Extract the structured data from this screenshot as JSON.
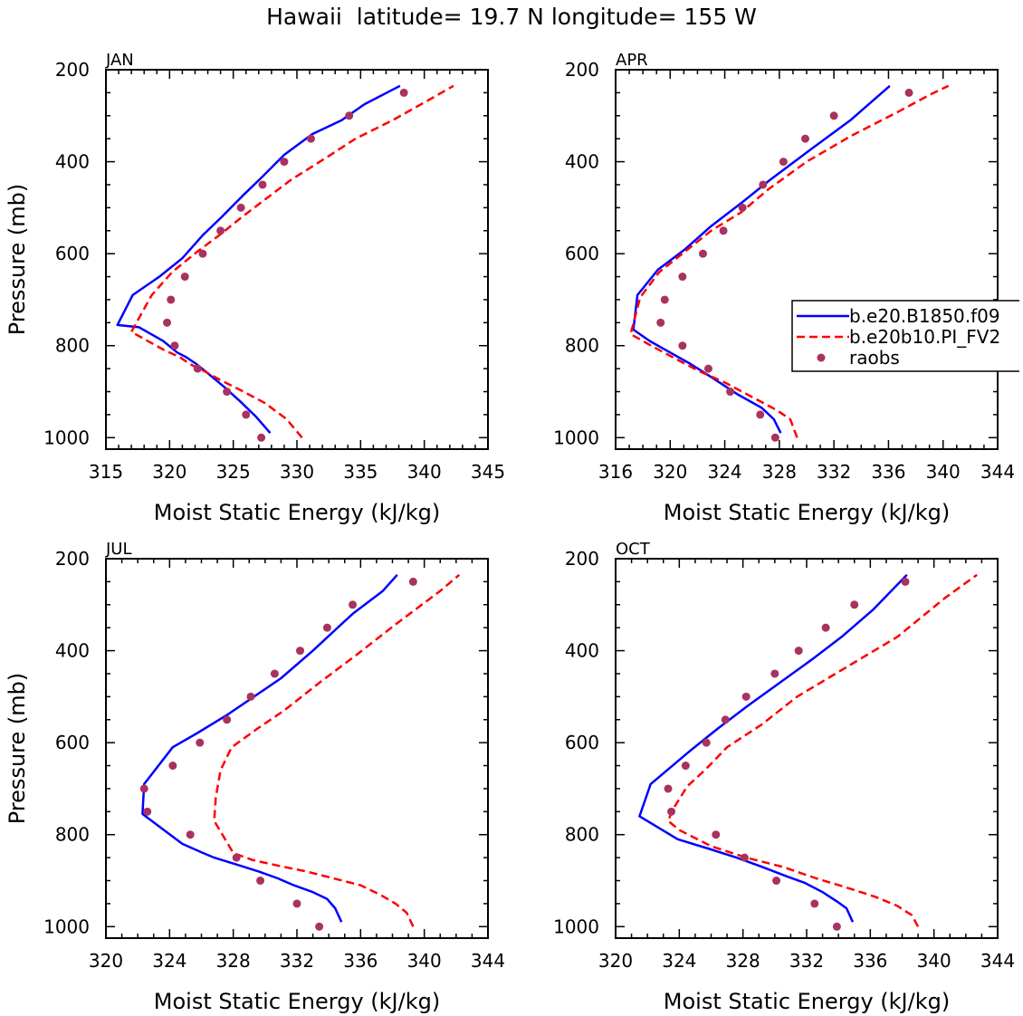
{
  "figure_title": "Hawaii  latitude= 19.7 N longitude= 155 W",
  "chart_data": [
    {
      "type": "line",
      "panel": "JAN",
      "xlabel": "Moist Static Energy (kJ/kg)",
      "ylabel": "Pressure (mb)",
      "xlim": [
        315,
        345
      ],
      "ylim": [
        200,
        1025
      ],
      "y_inverted": true,
      "xticks": [
        315,
        320,
        325,
        330,
        335,
        340,
        345
      ],
      "xminor": 1,
      "yticks": [
        200,
        400,
        600,
        800,
        1000
      ],
      "yminor": 50,
      "legend": null,
      "series": [
        {
          "name": "b.e20.B1850.f09",
          "color": "#0000ff",
          "style": "solid",
          "x": [
            327.9,
            326.8,
            325.5,
            324.3,
            323.0,
            322.1,
            321.3,
            320.6,
            319.5,
            317.6,
            315.9,
            317.1,
            319.2,
            321.0,
            322.6,
            324.1,
            325.7,
            327.2,
            329.0,
            331.2,
            333.5,
            335.3,
            338.1
          ],
          "y": [
            990,
            955,
            920,
            890,
            860,
            840,
            825,
            815,
            790,
            760,
            755,
            690,
            650,
            610,
            560,
            520,
            475,
            435,
            385,
            340,
            310,
            275,
            235
          ]
        },
        {
          "name": "b.e20b10.PI_FV2",
          "color": "#ff0000",
          "style": "dashed",
          "x": [
            330.4,
            329.2,
            327.5,
            325.8,
            324.0,
            322.7,
            321.6,
            320.8,
            319.6,
            317.0,
            318.6,
            320.2,
            322.2,
            323.9,
            325.7,
            327.6,
            329.5,
            331.8,
            334.6,
            337.5,
            340.4,
            342.3
          ],
          "y": [
            1000,
            960,
            925,
            900,
            875,
            855,
            840,
            825,
            810,
            770,
            690,
            640,
            595,
            560,
            520,
            480,
            440,
            400,
            350,
            310,
            265,
            235
          ]
        },
        {
          "name": "raobs",
          "color": "#a83260",
          "style": "dots",
          "x": [
            327.2,
            326.0,
            324.5,
            322.2,
            320.4,
            319.8,
            320.1,
            321.2,
            322.6,
            324.0,
            325.6,
            327.3,
            329.0,
            331.1,
            334.1,
            338.4
          ],
          "y": [
            1000,
            950,
            900,
            850,
            800,
            750,
            700,
            650,
            600,
            550,
            500,
            450,
            400,
            350,
            300,
            250
          ]
        }
      ]
    },
    {
      "type": "line",
      "panel": "APR",
      "xlabel": "Moist Static Energy (kJ/kg)",
      "ylabel": "",
      "xlim": [
        316,
        344
      ],
      "ylim": [
        200,
        1025
      ],
      "y_inverted": true,
      "xticks": [
        316,
        320,
        324,
        328,
        332,
        336,
        340,
        344
      ],
      "xminor": 1,
      "yticks": [
        200,
        400,
        600,
        800,
        1000
      ],
      "yminor": 50,
      "legend": {
        "position": "right",
        "entries": [
          "b.e20.B1850.f09",
          "b.e20b10.PI_FV2",
          "raobs"
        ]
      },
      "series": [
        {
          "name": "b.e20.B1850.f09",
          "color": "#0000ff",
          "style": "solid",
          "x": [
            328.1,
            327.6,
            326.7,
            324.9,
            323.1,
            321.5,
            320.0,
            318.5,
            317.3,
            317.6,
            319.1,
            321.1,
            323.0,
            325.2,
            327.3,
            330.0,
            333.2,
            336.1
          ],
          "y": [
            990,
            960,
            935,
            905,
            870,
            840,
            815,
            790,
            765,
            690,
            635,
            590,
            540,
            490,
            440,
            380,
            310,
            235
          ]
        },
        {
          "name": "b.e20b10.PI_FV2",
          "color": "#ff0000",
          "style": "dashed",
          "x": [
            329.3,
            328.8,
            327.8,
            325.9,
            324.0,
            322.1,
            320.5,
            318.6,
            317.1,
            317.8,
            319.2,
            321.1,
            323.0,
            325.2,
            327.2,
            330.0,
            333.2,
            336.8,
            339.0,
            340.4
          ],
          "y": [
            1000,
            960,
            940,
            910,
            880,
            855,
            830,
            800,
            775,
            695,
            640,
            595,
            550,
            510,
            460,
            400,
            345,
            290,
            255,
            235
          ]
        },
        {
          "name": "raobs",
          "color": "#a83260",
          "style": "dots",
          "x": [
            327.7,
            326.6,
            324.4,
            322.8,
            320.9,
            319.3,
            319.6,
            320.9,
            322.4,
            323.9,
            325.3,
            326.8,
            328.3,
            329.9,
            332.0,
            337.5
          ],
          "y": [
            1000,
            950,
            900,
            850,
            800,
            750,
            700,
            650,
            600,
            550,
            500,
            450,
            400,
            350,
            300,
            250
          ]
        }
      ]
    },
    {
      "type": "line",
      "panel": "JUL",
      "xlabel": "Moist Static Energy (kJ/kg)",
      "ylabel": "Pressure (mb)",
      "xlim": [
        320,
        344
      ],
      "ylim": [
        200,
        1025
      ],
      "y_inverted": true,
      "xticks": [
        320,
        324,
        328,
        332,
        336,
        340,
        344
      ],
      "xminor": 1,
      "yticks": [
        200,
        400,
        600,
        800,
        1000
      ],
      "yminor": 50,
      "legend": null,
      "series": [
        {
          "name": "b.e20.B1850.f09",
          "color": "#0000ff",
          "style": "solid",
          "x": [
            334.8,
            334.4,
            333.9,
            333.0,
            331.8,
            330.8,
            329.6,
            328.2,
            326.8,
            326.1,
            324.8,
            322.3,
            322.4,
            324.2,
            325.7,
            327.6,
            329.3,
            331.0,
            333.0,
            335.5,
            337.4,
            338.3
          ],
          "y": [
            990,
            960,
            940,
            925,
            910,
            895,
            880,
            865,
            850,
            840,
            820,
            755,
            690,
            610,
            580,
            540,
            500,
            460,
            400,
            320,
            270,
            235
          ]
        },
        {
          "name": "b.e20b10.PI_FV2",
          "color": "#ff0000",
          "style": "dashed",
          "x": [
            339.3,
            338.9,
            338.2,
            337.2,
            336.0,
            334.3,
            332.6,
            330.9,
            329.2,
            328.0,
            326.8,
            326.9,
            327.2,
            327.9,
            329.5,
            331.2,
            333.4,
            335.7,
            338.3,
            341.0,
            342.2
          ],
          "y": [
            1000,
            970,
            950,
            930,
            910,
            895,
            880,
            868,
            855,
            840,
            770,
            720,
            660,
            610,
            570,
            530,
            470,
            410,
            340,
            270,
            235
          ]
        },
        {
          "name": "raobs",
          "color": "#a83260",
          "style": "dots",
          "x": [
            333.4,
            332.0,
            329.7,
            328.2,
            325.3,
            322.6,
            322.4,
            324.2,
            325.9,
            327.6,
            329.1,
            330.6,
            332.2,
            333.9,
            335.5,
            339.3
          ],
          "y": [
            1000,
            950,
            900,
            850,
            800,
            750,
            700,
            650,
            600,
            550,
            500,
            450,
            400,
            350,
            300,
            250
          ]
        }
      ]
    },
    {
      "type": "line",
      "panel": "OCT",
      "xlabel": "Moist Static Energy (kJ/kg)",
      "ylabel": "",
      "xlim": [
        320,
        344
      ],
      "ylim": [
        200,
        1025
      ],
      "y_inverted": true,
      "xticks": [
        320,
        324,
        328,
        332,
        336,
        340,
        344
      ],
      "xminor": 1,
      "yticks": [
        200,
        400,
        600,
        800,
        1000
      ],
      "yminor": 50,
      "legend": null,
      "series": [
        {
          "name": "b.e20.B1850.f09",
          "color": "#0000ff",
          "style": "solid",
          "x": [
            334.9,
            334.5,
            333.9,
            333.0,
            331.9,
            330.7,
            329.2,
            327.6,
            325.8,
            323.9,
            321.5,
            322.2,
            324.6,
            326.4,
            328.3,
            330.3,
            332.3,
            334.2,
            336.2,
            338.3
          ],
          "y": [
            990,
            960,
            945,
            925,
            905,
            890,
            870,
            850,
            830,
            810,
            760,
            690,
            620,
            570,
            520,
            470,
            420,
            370,
            310,
            235
          ]
        },
        {
          "name": "b.e20b10.PI_FV2",
          "color": "#ff0000",
          "style": "dashed",
          "x": [
            339.0,
            338.6,
            337.7,
            336.3,
            334.5,
            332.6,
            330.5,
            328.2,
            326.0,
            324.0,
            323.3,
            323.6,
            324.5,
            325.6,
            327.0,
            329.2,
            331.4,
            334.3,
            337.7,
            340.7,
            342.7
          ],
          "y": [
            1000,
            975,
            955,
            935,
            915,
            895,
            870,
            850,
            825,
            790,
            770,
            745,
            695,
            660,
            610,
            560,
            500,
            440,
            370,
            285,
            235
          ]
        },
        {
          "name": "raobs",
          "color": "#a83260",
          "style": "dots",
          "x": [
            333.9,
            332.5,
            330.1,
            328.1,
            326.3,
            323.5,
            323.3,
            324.4,
            325.7,
            326.9,
            328.2,
            330.0,
            331.5,
            333.2,
            335.0,
            338.2
          ],
          "y": [
            1000,
            950,
            900,
            850,
            800,
            750,
            700,
            650,
            600,
            550,
            500,
            450,
            400,
            350,
            300,
            250
          ]
        }
      ]
    }
  ]
}
